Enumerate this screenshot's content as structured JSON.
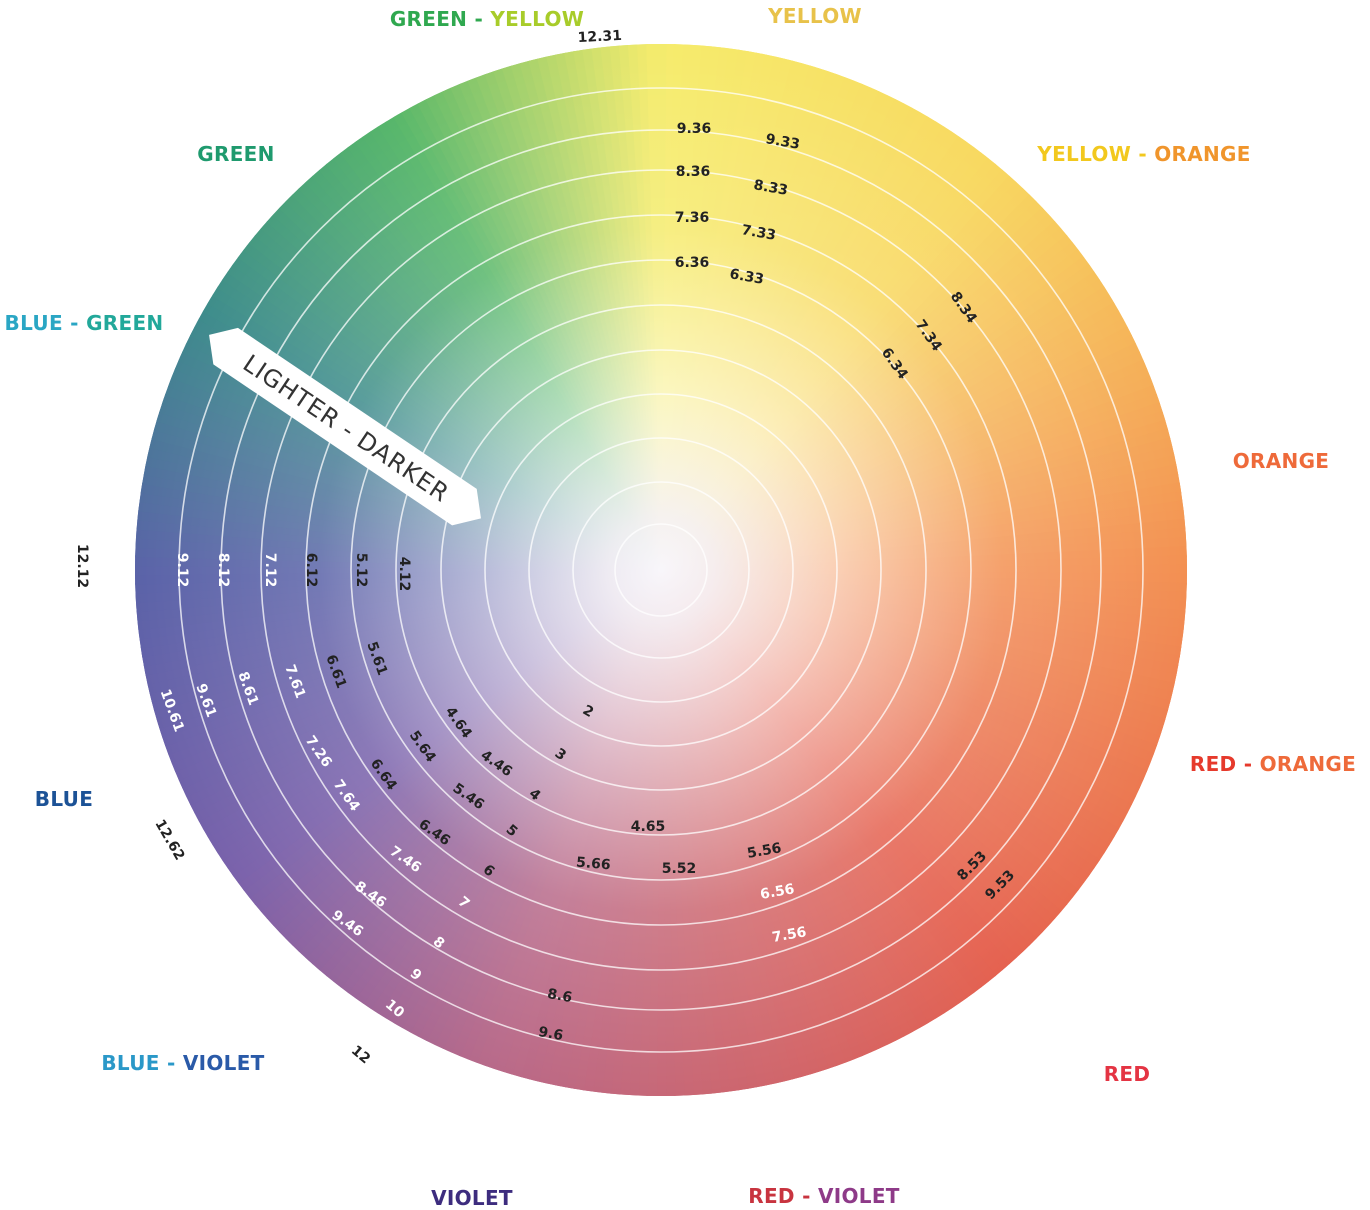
{
  "hues": [
    {
      "label": "GREEN - YELLOW",
      "parts": [
        {
          "t": "GREEN - ",
          "c": "#2fa84f"
        },
        {
          "t": "YELLOW",
          "c": "#a8cc2a"
        }
      ]
    },
    {
      "label": "YELLOW",
      "parts": [
        {
          "t": "YELLOW",
          "c": "#e8c24a"
        }
      ]
    },
    {
      "label": "YELLOW - ORANGE",
      "parts": [
        {
          "t": "YELLOW - ",
          "c": "#f2c81e"
        },
        {
          "t": "ORANGE",
          "c": "#f0952c"
        }
      ]
    },
    {
      "label": "ORANGE",
      "parts": [
        {
          "t": "ORANGE",
          "c": "#ee6a3a"
        }
      ]
    },
    {
      "label": "RED - ORANGE",
      "parts": [
        {
          "t": "RED - ",
          "c": "#e63a2c"
        },
        {
          "t": "ORANGE",
          "c": "#ee6a3a"
        }
      ]
    },
    {
      "label": "RED",
      "parts": [
        {
          "t": "RED",
          "c": "#e43443"
        }
      ]
    },
    {
      "label": "RED - VIOLET",
      "parts": [
        {
          "t": "RED - ",
          "c": "#c8343f"
        },
        {
          "t": "VIOLET",
          "c": "#8e3a88"
        }
      ]
    },
    {
      "label": "VIOLET",
      "parts": [
        {
          "t": "VIOLET",
          "c": "#3d2c7e"
        }
      ]
    },
    {
      "label": "BLUE - VIOLET",
      "parts": [
        {
          "t": "BLUE - ",
          "c": "#2a98c8"
        },
        {
          "t": "VIOLET",
          "c": "#2a5aa8"
        }
      ]
    },
    {
      "label": "BLUE",
      "parts": [
        {
          "t": "BLUE",
          "c": "#1c5296"
        }
      ]
    },
    {
      "label": "BLUE - GREEN",
      "parts": [
        {
          "t": "BLUE - ",
          "c": "#2aa6c4"
        },
        {
          "t": "GREEN",
          "c": "#22a89a"
        }
      ]
    },
    {
      "label": "GREEN",
      "parts": [
        {
          "t": "GREEN",
          "c": "#1f9a6e"
        }
      ]
    }
  ],
  "arrow_label": "LIGHTER - DARKER",
  "level_numbers": [
    "2",
    "3",
    "4",
    "5",
    "6",
    "7",
    "8",
    "9",
    "10",
    "12"
  ],
  "shade_codes": {
    "n12": [
      "12.12",
      "9.12",
      "8.12",
      "7.12",
      "6.12",
      "5.12",
      "4.12"
    ],
    "n61": [
      "10.61",
      "9.61",
      "8.61",
      "7.61",
      "6.61",
      "5.61"
    ],
    "n64": [
      "7.64",
      "6.64",
      "5.64",
      "4.64"
    ],
    "n46": [
      "9.46",
      "8.46",
      "7.46",
      "7.26",
      "6.46",
      "5.46",
      "4.46"
    ],
    "n36": [
      "9.36",
      "8.36",
      "7.36",
      "6.36"
    ],
    "n33": [
      "9.33",
      "8.33",
      "7.33",
      "6.33"
    ],
    "n34": [
      "8.34",
      "7.34",
      "6.34"
    ],
    "n53": [
      "9.53",
      "8.53"
    ],
    "n56": [
      "7.56",
      "6.56",
      "5.56"
    ],
    "n65": [
      "4.65",
      "5.66",
      "5.52"
    ],
    "n6": [
      "9.6",
      "8.6"
    ],
    "misc": [
      "12.31",
      "12.62"
    ]
  },
  "colors": {
    "ring": "#ffffff",
    "green": "#57b76a",
    "yellow": "#f6ec6c",
    "orange": "#f39052",
    "red": "#e56250",
    "violet": "#7a62ab",
    "blue": "#5a62a8",
    "teal": "#3e8c8c",
    "center": "#f7f4f8"
  }
}
